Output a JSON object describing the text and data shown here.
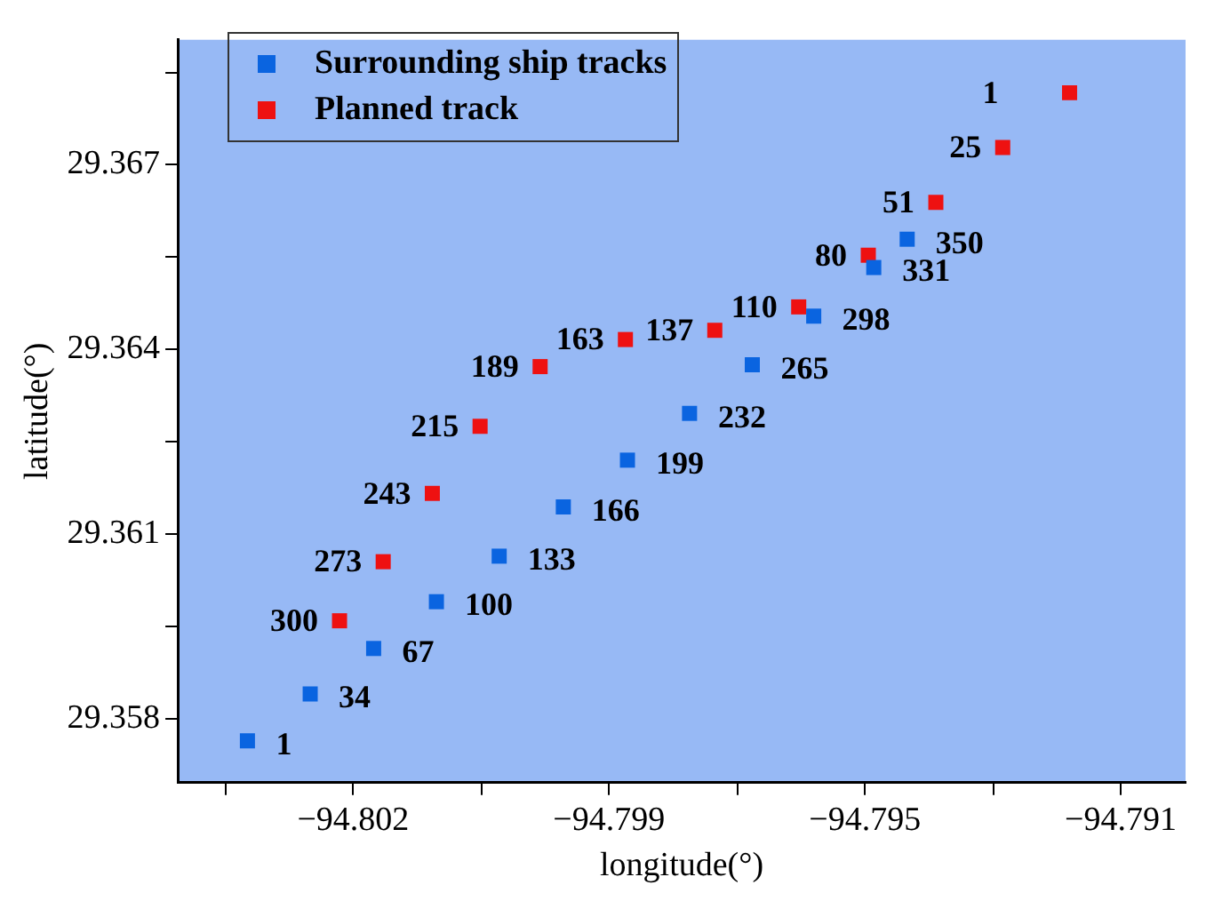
{
  "chart_data": {
    "type": "scatter",
    "xlabel": "longitude(°)",
    "ylabel": "latitude(°)",
    "marker": "square",
    "legend": "top left",
    "grid": false,
    "xlim": [
      -94.80482,
      -94.79005
    ],
    "ylim": [
      29.35696,
      29.36903
    ],
    "xticks": [
      {
        "value": -94.80412,
        "label": null
      },
      {
        "value": -94.80225,
        "label": "−94.802"
      },
      {
        "value": -94.80037,
        "label": null
      },
      {
        "value": -94.7985,
        "label": "−94.799"
      },
      {
        "value": -94.79662,
        "label": null
      },
      {
        "value": -94.79475,
        "label": "−94.795"
      },
      {
        "value": -94.79287,
        "label": null
      },
      {
        "value": -94.791,
        "label": "−94.791"
      }
    ],
    "yticks": [
      29.358,
      {
        "value": 29.3595,
        "label": null
      },
      29.361,
      {
        "value": 29.3625,
        "label": null
      },
      29.364,
      {
        "value": 29.3655,
        "label": null
      },
      29.367,
      {
        "value": 29.3685,
        "label": null
      }
    ],
    "series": [
      {
        "name": "Surrounding ship tracks",
        "color": "#0a64e0",
        "x": [
          -94.8038,
          -94.80288,
          -94.80195,
          -94.80103,
          -94.80011,
          -94.79917,
          -94.79823,
          -94.79732,
          -94.7964,
          -94.7955,
          -94.79462,
          -94.79413
        ],
        "values": [
          29.35764,
          29.3584,
          29.35914,
          29.3599,
          29.36064,
          29.36144,
          29.3622,
          29.36296,
          29.36375,
          29.36454,
          29.36533,
          29.36579
        ]
      },
      {
        "name": "Planned track",
        "color": "#ee1111",
        "x": [
          -94.79175,
          -94.79273,
          -94.79371,
          -94.7947,
          -94.79572,
          -94.79695,
          -94.79826,
          -94.79951,
          -94.80039,
          -94.80109,
          -94.80181,
          -94.80245
        ],
        "values": [
          29.36817,
          29.36728,
          29.36639,
          29.36553,
          29.36469,
          29.36431,
          29.36416,
          29.36372,
          29.36275,
          29.36166,
          29.36055,
          29.35959
        ]
      }
    ],
    "annotations": [
      {
        "text": "1",
        "x": -94.8038,
        "y": 29.35764
      },
      {
        "text": "34",
        "x": -94.80288,
        "y": 29.3584
      },
      {
        "text": "67",
        "x": -94.80195,
        "y": 29.35914
      },
      {
        "text": "100",
        "x": -94.80103,
        "y": 29.3599
      },
      {
        "text": "133",
        "x": -94.80011,
        "y": 29.36064
      },
      {
        "text": "166",
        "x": -94.79917,
        "y": 29.36144
      },
      {
        "text": "199",
        "x": -94.79823,
        "y": 29.3622
      },
      {
        "text": "232",
        "x": -94.79732,
        "y": 29.36296
      },
      {
        "text": "265",
        "x": -94.7964,
        "y": 29.36375
      },
      {
        "text": "298",
        "x": -94.7955,
        "y": 29.36454
      },
      {
        "text": "331",
        "x": -94.79462,
        "y": 29.36533
      },
      {
        "text": "350",
        "x": -94.79413,
        "y": 29.36579
      },
      {
        "text": "1",
        "x": -94.79175,
        "y": 29.36817
      },
      {
        "text": "25",
        "x": -94.79273,
        "y": 29.36728
      },
      {
        "text": "51",
        "x": -94.79371,
        "y": 29.36639
      },
      {
        "text": "80",
        "x": -94.7947,
        "y": 29.36553
      },
      {
        "text": "110",
        "x": -94.79572,
        "y": 29.36469
      },
      {
        "text": "137",
        "x": -94.79695,
        "y": 29.36431
      },
      {
        "text": "163",
        "x": -94.79826,
        "y": 29.36416
      },
      {
        "text": "189",
        "x": -94.79951,
        "y": 29.36372
      },
      {
        "text": "215",
        "x": -94.80039,
        "y": 29.36275
      },
      {
        "text": "243",
        "x": -94.80109,
        "y": 29.36166
      },
      {
        "text": "273",
        "x": -94.80181,
        "y": 29.36055
      },
      {
        "text": "300",
        "x": -94.80245,
        "y": 29.35959
      }
    ]
  }
}
